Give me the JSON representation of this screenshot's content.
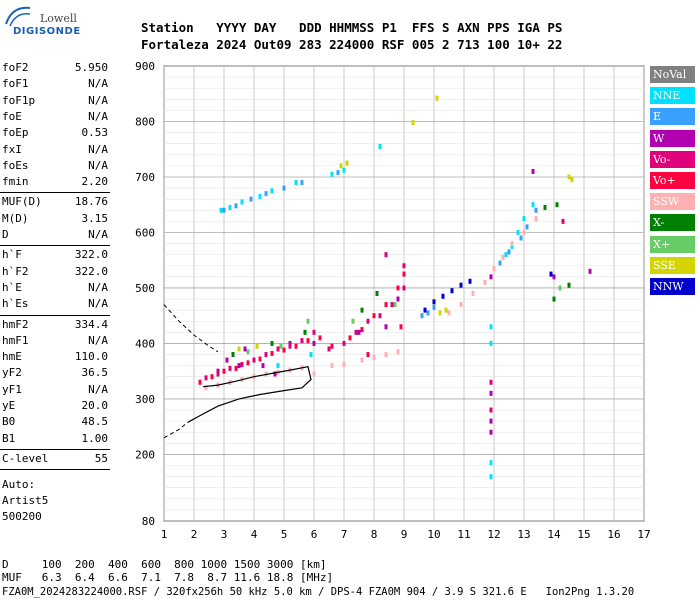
{
  "logo": {
    "line1": "Lowell",
    "line2": "DIGISONDE"
  },
  "header": {
    "row1": "Station   YYYY DAY   DDD HHMMSS P1  FFS S AXN PPS IGA PS",
    "row2": "Fortaleza 2024 Out09 283 224000 RSF 005 2 713 100 10+ 22"
  },
  "params": {
    "group1": [
      {
        "label": "foF2",
        "value": "5.950"
      },
      {
        "label": "foF1",
        "value": "N/A"
      },
      {
        "label": "foF1p",
        "value": "N/A"
      },
      {
        "label": "foE",
        "value": "N/A"
      },
      {
        "label": "foEp",
        "value": "0.53"
      },
      {
        "label": "fxI",
        "value": "N/A"
      },
      {
        "label": "foEs",
        "value": "N/A"
      },
      {
        "label": "fmin",
        "value": "2.20"
      }
    ],
    "group2": [
      {
        "label": "MUF(D)",
        "value": "18.76"
      },
      {
        "label": "M(D)",
        "value": "3.15"
      },
      {
        "label": "D",
        "value": "N/A"
      }
    ],
    "group3": [
      {
        "label": "h`F",
        "value": "322.0"
      },
      {
        "label": "h`F2",
        "value": "322.0"
      },
      {
        "label": "h`E",
        "value": "N/A"
      },
      {
        "label": "h`Es",
        "value": "N/A"
      }
    ],
    "group4": [
      {
        "label": "hmF2",
        "value": "334.4"
      },
      {
        "label": "hmF1",
        "value": "N/A"
      },
      {
        "label": "hmE",
        "value": "110.0"
      },
      {
        "label": "yF2",
        "value": "36.5"
      },
      {
        "label": "yF1",
        "value": "N/A"
      },
      {
        "label": "yE",
        "value": "20.0"
      },
      {
        "label": "B0",
        "value": "48.5"
      },
      {
        "label": "B1",
        "value": "1.00"
      }
    ],
    "group5": [
      {
        "label": "C-level",
        "value": "55"
      }
    ],
    "auto": [
      "Auto:",
      "Artist5",
      "500200"
    ]
  },
  "legend": [
    {
      "label": "NoVal",
      "color": "#808080"
    },
    {
      "label": "NNE",
      "color": "#00e0ff"
    },
    {
      "label": "E",
      "color": "#3aa0ff"
    },
    {
      "label": "W",
      "color": "#b000b0"
    },
    {
      "label": "Vo-",
      "color": "#e0007a"
    },
    {
      "label": "Vo+",
      "color": "#ff0040"
    },
    {
      "label": "SSW",
      "color": "#ffb0b0"
    },
    {
      "label": "X-",
      "color": "#008000"
    },
    {
      "label": "X+",
      "color": "#66cc66"
    },
    {
      "label": "SSE",
      "color": "#d4d400"
    },
    {
      "label": "NNW",
      "color": "#0000cc"
    }
  ],
  "chart_data": {
    "type": "scatter",
    "xlim": [
      1,
      17
    ],
    "ylim": [
      80,
      900
    ],
    "x_ticks": [
      1,
      2,
      3,
      4,
      5,
      6,
      7,
      8,
      9,
      10,
      11,
      12,
      13,
      14,
      15,
      16,
      17
    ],
    "y_ticks": [
      80,
      200,
      300,
      400,
      500,
      600,
      700,
      800,
      900
    ],
    "grid": true,
    "series": [
      {
        "name": "NNE",
        "color": "#00e0ff",
        "points": [
          [
            2.9,
            640
          ],
          [
            3.2,
            645
          ],
          [
            3.6,
            655
          ],
          [
            4.2,
            665
          ],
          [
            4.6,
            675
          ],
          [
            5.4,
            690
          ],
          [
            6.6,
            705
          ],
          [
            7.0,
            712
          ],
          [
            12.4,
            560
          ],
          [
            12.6,
            575
          ],
          [
            12.8,
            600
          ],
          [
            13.0,
            625
          ],
          [
            13.3,
            650
          ],
          [
            11.9,
            430
          ],
          [
            11.9,
            400
          ],
          [
            11.9,
            160
          ],
          [
            11.9,
            185
          ],
          [
            8.2,
            755
          ],
          [
            5.9,
            380
          ],
          [
            4.8,
            360
          ]
        ]
      },
      {
        "name": "E",
        "color": "#3aa0ff",
        "points": [
          [
            3.0,
            640
          ],
          [
            3.4,
            648
          ],
          [
            3.9,
            660
          ],
          [
            4.4,
            670
          ],
          [
            5.0,
            680
          ],
          [
            5.6,
            690
          ],
          [
            6.8,
            708
          ],
          [
            12.2,
            545
          ],
          [
            12.5,
            565
          ],
          [
            12.9,
            590
          ],
          [
            13.1,
            610
          ],
          [
            13.4,
            640
          ],
          [
            9.6,
            450
          ],
          [
            9.8,
            455
          ],
          [
            10.0,
            465
          ]
        ]
      },
      {
        "name": "W",
        "color": "#b000b0",
        "points": [
          [
            3.1,
            370
          ],
          [
            3.7,
            390
          ],
          [
            4.3,
            360
          ],
          [
            5.2,
            400
          ],
          [
            6.0,
            400
          ],
          [
            7.5,
            420
          ],
          [
            8.4,
            430
          ],
          [
            8.8,
            480
          ],
          [
            11.9,
            260
          ],
          [
            11.9,
            240
          ],
          [
            11.9,
            310
          ],
          [
            11.9,
            520
          ],
          [
            13.3,
            710
          ],
          [
            14.0,
            520
          ],
          [
            15.2,
            530
          ],
          [
            2.8,
            350
          ],
          [
            3.5,
            360
          ],
          [
            4.7,
            345
          ]
        ]
      },
      {
        "name": "Vo-",
        "color": "#e0007a",
        "points": [
          [
            2.4,
            338
          ],
          [
            2.8,
            345
          ],
          [
            3.2,
            355
          ],
          [
            3.6,
            362
          ],
          [
            4.0,
            370
          ],
          [
            4.4,
            380
          ],
          [
            4.8,
            390
          ],
          [
            5.2,
            395
          ],
          [
            5.6,
            405
          ],
          [
            6.0,
            420
          ],
          [
            6.5,
            390
          ],
          [
            7.0,
            400
          ],
          [
            7.4,
            420
          ],
          [
            7.8,
            440
          ],
          [
            8.2,
            450
          ],
          [
            8.6,
            470
          ],
          [
            9.0,
            500
          ],
          [
            9.0,
            540
          ],
          [
            11.9,
            330
          ],
          [
            11.9,
            280
          ],
          [
            14.3,
            620
          ],
          [
            8.4,
            560
          ]
        ]
      },
      {
        "name": "Vo+",
        "color": "#ff0040",
        "points": [
          [
            2.2,
            330
          ],
          [
            2.6,
            340
          ],
          [
            3.0,
            350
          ],
          [
            3.4,
            355
          ],
          [
            3.8,
            365
          ],
          [
            4.2,
            372
          ],
          [
            4.6,
            382
          ],
          [
            5.0,
            388
          ],
          [
            5.4,
            395
          ],
          [
            5.8,
            405
          ],
          [
            6.2,
            410
          ],
          [
            6.6,
            395
          ],
          [
            7.2,
            410
          ],
          [
            7.6,
            425
          ],
          [
            8.0,
            450
          ],
          [
            8.4,
            470
          ],
          [
            8.8,
            500
          ],
          [
            9.0,
            525
          ],
          [
            8.9,
            430
          ],
          [
            7.8,
            380
          ]
        ]
      },
      {
        "name": "SSW",
        "color": "#ffb0b0",
        "points": [
          [
            2.4,
            320
          ],
          [
            2.8,
            325
          ],
          [
            3.2,
            330
          ],
          [
            3.6,
            335
          ],
          [
            4.0,
            340
          ],
          [
            4.4,
            345
          ],
          [
            4.8,
            348
          ],
          [
            5.2,
            352
          ],
          [
            5.6,
            356
          ],
          [
            6.0,
            345
          ],
          [
            6.6,
            360
          ],
          [
            7.0,
            362
          ],
          [
            7.6,
            370
          ],
          [
            8.0,
            375
          ],
          [
            8.4,
            380
          ],
          [
            8.8,
            385
          ],
          [
            10.5,
            455
          ],
          [
            10.9,
            470
          ],
          [
            11.3,
            490
          ],
          [
            11.7,
            510
          ],
          [
            12.0,
            535
          ],
          [
            12.3,
            555
          ],
          [
            12.6,
            580
          ],
          [
            13.0,
            600
          ],
          [
            13.4,
            625
          ]
        ]
      },
      {
        "name": "X-",
        "color": "#008000",
        "points": [
          [
            3.3,
            380
          ],
          [
            4.6,
            400
          ],
          [
            5.7,
            420
          ],
          [
            7.6,
            460
          ],
          [
            8.1,
            490
          ],
          [
            13.7,
            645
          ],
          [
            14.1,
            650
          ],
          [
            14.0,
            480
          ],
          [
            14.5,
            505
          ]
        ]
      },
      {
        "name": "X+",
        "color": "#66cc66",
        "points": [
          [
            3.8,
            385
          ],
          [
            4.9,
            395
          ],
          [
            5.8,
            440
          ],
          [
            7.3,
            440
          ],
          [
            8.7,
            470
          ],
          [
            14.2,
            500
          ]
        ]
      },
      {
        "name": "SSE",
        "color": "#d4d400",
        "points": [
          [
            6.9,
            720
          ],
          [
            7.1,
            725
          ],
          [
            9.3,
            798
          ],
          [
            10.1,
            842
          ],
          [
            10.2,
            455
          ],
          [
            10.4,
            460
          ],
          [
            14.5,
            700
          ],
          [
            14.6,
            695
          ],
          [
            3.5,
            390
          ],
          [
            4.1,
            395
          ]
        ]
      },
      {
        "name": "NNW",
        "color": "#0000cc",
        "points": [
          [
            9.7,
            460
          ],
          [
            10.0,
            475
          ],
          [
            10.3,
            485
          ],
          [
            10.6,
            495
          ],
          [
            10.9,
            505
          ],
          [
            11.2,
            512
          ],
          [
            13.9,
            525
          ]
        ]
      }
    ],
    "profile_solid": [
      [
        2.3,
        322
      ],
      [
        2.8,
        325
      ],
      [
        3.4,
        332
      ],
      [
        4.0,
        340
      ],
      [
        4.6,
        346
      ],
      [
        5.2,
        352
      ],
      [
        5.8,
        358
      ],
      [
        5.9,
        335
      ],
      [
        5.6,
        320
      ],
      [
        5.0,
        315
      ],
      [
        4.2,
        308
      ],
      [
        3.5,
        300
      ],
      [
        2.8,
        287
      ],
      [
        2.2,
        270
      ],
      [
        1.8,
        258
      ]
    ],
    "profile_dashed_upper": [
      [
        1.0,
        470
      ],
      [
        1.5,
        440
      ],
      [
        2.0,
        415
      ],
      [
        2.5,
        395
      ],
      [
        2.8,
        385
      ]
    ],
    "profile_dashed_lower": [
      [
        1.0,
        230
      ],
      [
        1.5,
        245
      ],
      [
        1.8,
        258
      ]
    ]
  },
  "footer": {
    "row1": "D     100  200  400  600  800 1000 1500 3000 [km]",
    "row2": "MUF   6.3  6.4  6.6  7.1  7.8  8.7 11.6 18.8 [MHz]",
    "row3": "FZA0M_2024283224000.RSF / 320fx256h 50 kHz 5.0 km / DPS-4 FZA0M 904 / 3.9 S 321.6 E   Ion2Png 1.3.20"
  }
}
